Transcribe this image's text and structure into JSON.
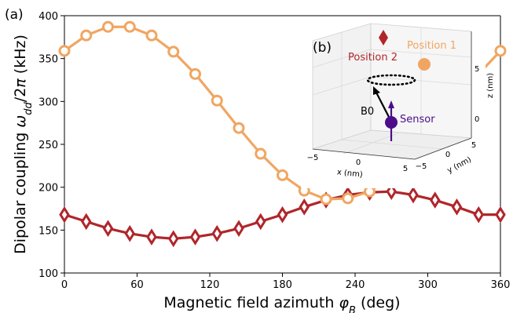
{
  "panel_a_label": "(a)",
  "panel_b_label": "(b)",
  "colors": {
    "position1": "#f0a662",
    "position2": "#b0262b",
    "sensor": "#4b0d8a",
    "bfield": "#000000"
  },
  "chart_data": {
    "type": "line",
    "xlabel": "Magnetic field azimuth φB (deg)",
    "ylabel": "Dipolar coupling ωdd/2π (kHz)",
    "xlim": [
      0,
      360
    ],
    "ylim": [
      100,
      400
    ],
    "xticks": [
      0,
      60,
      120,
      180,
      240,
      300,
      360
    ],
    "yticks": [
      100,
      150,
      200,
      250,
      300,
      350,
      400
    ],
    "grid": false,
    "x": [
      0,
      18,
      36,
      54,
      72,
      90,
      108,
      126,
      144,
      162,
      180,
      198,
      216,
      234,
      252,
      270,
      288,
      306,
      324,
      342,
      360
    ],
    "series": [
      {
        "name": "Position 1",
        "marker": "circle",
        "values": [
          359,
          377,
          387,
          387,
          377,
          358,
          332,
          301,
          269,
          239,
          214,
          196,
          186,
          187,
          195,
          213,
          238,
          268,
          300,
          332,
          359
        ]
      },
      {
        "name": "Position 2",
        "marker": "diamond",
        "values": [
          168,
          160,
          152,
          146,
          142,
          140,
          142,
          146,
          152,
          160,
          168,
          177,
          185,
          191,
          194,
          195,
          191,
          185,
          177,
          168,
          168
        ]
      }
    ]
  },
  "inset": {
    "position1_label": "Position 1",
    "position2_label": "Position 2",
    "sensor_label": "Sensor",
    "b0_label": "B0",
    "x_axis_label": "x (nm)",
    "y_axis_label": "y (nm)",
    "z_axis_label": "z (nm)",
    "x_ticks": [
      "−5",
      "0",
      "5"
    ],
    "y_ticks": [
      "−5",
      "0",
      "5"
    ],
    "z_ticks": [
      "0",
      "5"
    ]
  }
}
